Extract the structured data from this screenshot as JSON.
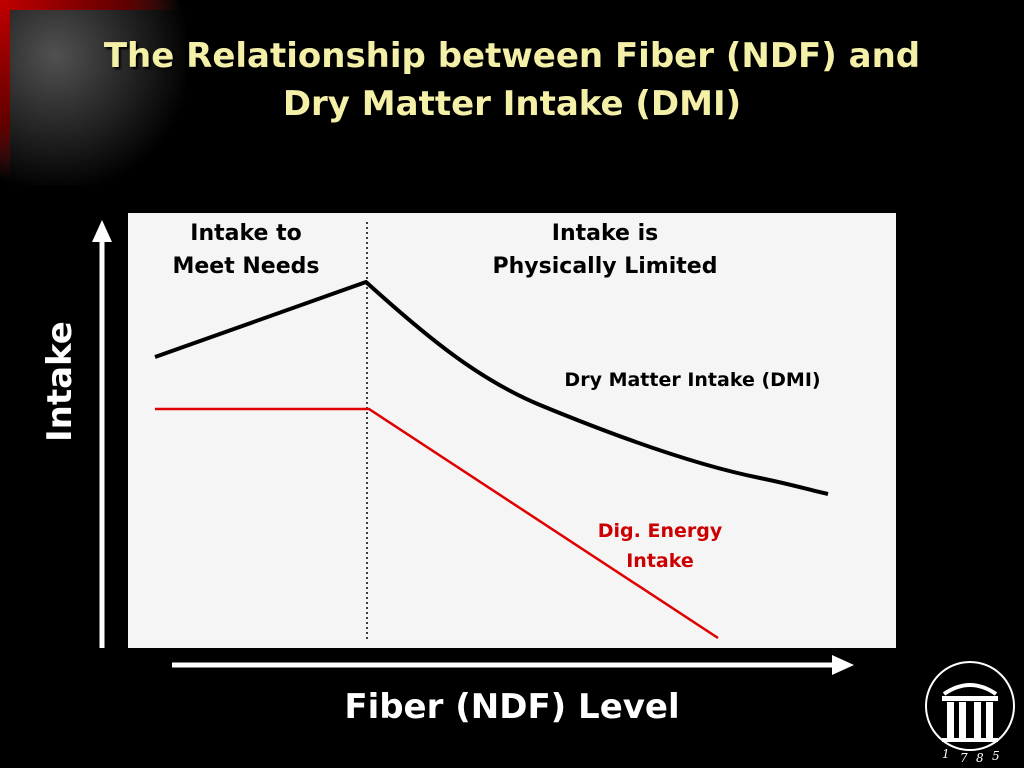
{
  "title": {
    "line1": "The Relationship between Fiber (NDF) and",
    "line2": "Dry Matter Intake (DMI)"
  },
  "diagram": {
    "regions": {
      "left": {
        "line1": "Intake to",
        "line2": "Meet Needs"
      },
      "right": {
        "line1": "Intake is",
        "line2": "Physically Limited"
      }
    },
    "curves": {
      "dmi": {
        "label": "Dry Matter Intake (DMI)",
        "color": "#000000"
      },
      "dig_energy": {
        "line1": "Dig. Energy",
        "line2": "Intake",
        "color": "#cc0000"
      }
    },
    "axes": {
      "y_label": "Intake",
      "x_label": "Fiber (NDF) Level"
    }
  },
  "logo": {
    "icon": "arch-logo-icon",
    "year_digits": [
      "1",
      "7",
      "8",
      "5"
    ]
  },
  "colors": {
    "background": "#000000",
    "title": "#f4f0a8",
    "plot_background": "#f5f5f5",
    "accent_red": "#cc0000"
  }
}
